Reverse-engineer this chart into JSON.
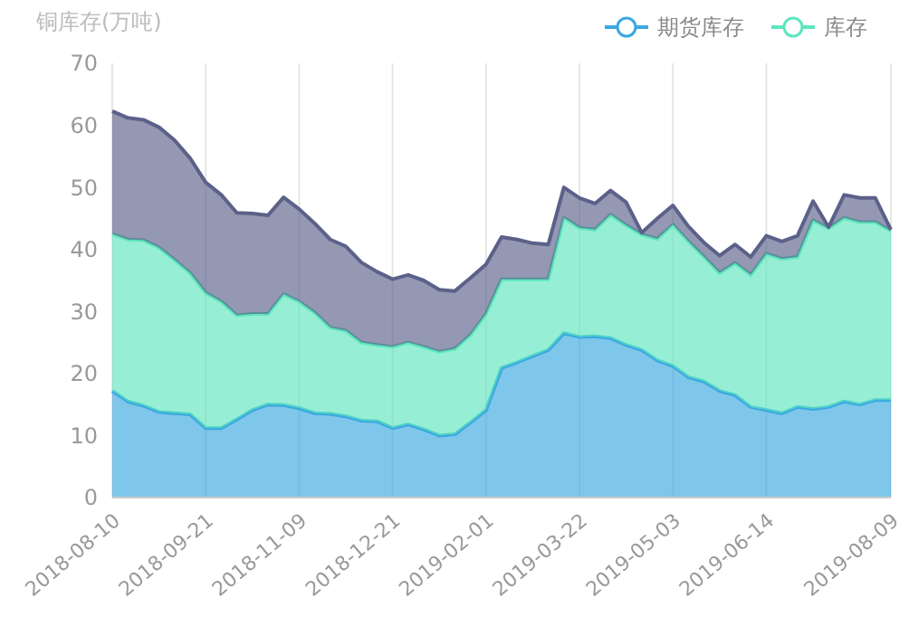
{
  "chart_data": {
    "type": "area",
    "stacked": true,
    "ylabel": "铜库存(万吨)",
    "legend": "top right",
    "grid": "x",
    "categories": [
      "2018-08-10",
      null,
      null,
      null,
      null,
      null,
      "2018-09-21",
      null,
      null,
      null,
      null,
      null,
      "2018-11-09",
      null,
      null,
      null,
      null,
      null,
      "2018-12-21",
      null,
      null,
      null,
      null,
      null,
      "2019-02-01",
      null,
      null,
      null,
      null,
      null,
      "2019-03-22",
      null,
      null,
      null,
      null,
      null,
      "2019-05-03",
      null,
      null,
      null,
      null,
      null,
      "2019-06-14",
      null,
      null,
      null,
      null,
      null,
      null,
      null,
      "2019-08-09"
    ],
    "ylim": [
      0,
      70
    ],
    "yticks": [
      0,
      10,
      20,
      30,
      40,
      50,
      60,
      70
    ],
    "series": [
      {
        "name": "期货库存",
        "color": "#3aa8e0",
        "values": [
          17.2,
          15.5,
          14.8,
          13.8,
          13.6,
          13.4,
          11.2,
          11.2,
          12.6,
          14.1,
          15.0,
          14.9,
          14.4,
          13.6,
          13.5,
          13.1,
          12.4,
          12.3,
          11.2,
          11.8,
          11.0,
          10.0,
          10.2,
          12.1,
          14.1,
          20.9,
          21.8,
          22.8,
          23.8,
          26.5,
          25.9,
          26.0,
          25.7,
          24.6,
          23.8,
          22.1,
          21.2,
          19.4,
          18.7,
          17.2,
          16.5,
          14.6,
          14.1,
          13.6,
          14.6,
          14.3,
          14.6,
          15.5,
          15.0,
          15.7,
          15.7
        ]
      },
      {
        "name": "库存",
        "color": "#5de6bd",
        "values": [
          25.3,
          26.1,
          26.7,
          26.5,
          24.7,
          22.8,
          21.8,
          20.4,
          16.8,
          15.5,
          14.6,
          17.9,
          17.2,
          16.2,
          13.9,
          13.8,
          12.6,
          12.3,
          13.1,
          13.2,
          13.3,
          13.5,
          13.8,
          14.1,
          15.5,
          14.3,
          13.4,
          12.4,
          11.4,
          18.6,
          17.6,
          17.2,
          19.9,
          19.3,
          18.6,
          19.6,
          22.8,
          21.9,
          20.1,
          19.0,
          21.3,
          21.3,
          25.2,
          24.9,
          24.2,
          30.4,
          28.8,
          29.6,
          29.4,
          28.7,
          27.3
        ]
      },
      {
        "color": "#5b6189",
        "values": [
          19.8,
          19.6,
          19.4,
          19.4,
          19.3,
          18.5,
          17.8,
          17.2,
          16.5,
          16.2,
          15.9,
          15.6,
          14.9,
          14.4,
          14.2,
          13.6,
          12.9,
          11.8,
          10.9,
          10.9,
          10.7,
          10.0,
          9.3,
          9.2,
          8.0,
          6.8,
          6.4,
          5.8,
          5.6,
          4.9,
          4.8,
          4.2,
          3.9,
          3.7,
          0.3,
          3.3,
          3.1,
          2.4,
          2.3,
          2.8,
          3.0,
          2.9,
          2.9,
          2.8,
          3.4,
          3.1,
          0.2,
          3.7,
          3.9,
          3.9,
          0.2
        ]
      }
    ]
  }
}
